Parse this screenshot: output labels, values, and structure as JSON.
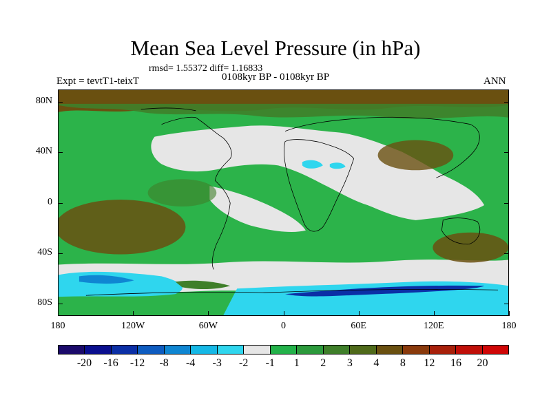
{
  "title": "Mean Sea Level Pressure (in hPa)",
  "stats": "rmsd= 1.55372 diff= 1.16833",
  "experiment": "Expt = tevtT1-teixT",
  "period": "0108kyr BP - 0108kyr BP",
  "season": "ANN",
  "map": {
    "lon_range": [
      -180,
      180
    ],
    "lat_range": [
      -90,
      90
    ],
    "x_ticks": [
      {
        "lon": -180,
        "label": "180"
      },
      {
        "lon": -120,
        "label": "120W"
      },
      {
        "lon": -60,
        "label": "60W"
      },
      {
        "lon": 0,
        "label": "0"
      },
      {
        "lon": 60,
        "label": "60E"
      },
      {
        "lon": 120,
        "label": "120E"
      },
      {
        "lon": 180,
        "label": "180"
      }
    ],
    "y_ticks": [
      {
        "lat": 80,
        "label": "80N"
      },
      {
        "lat": 40,
        "label": "40N"
      },
      {
        "lat": 0,
        "label": "0"
      },
      {
        "lat": -40,
        "label": "40S"
      },
      {
        "lat": -80,
        "label": "80S"
      }
    ]
  },
  "colorbar": {
    "colors": [
      "#1b0a6b",
      "#0a0f8f",
      "#0b2fa6",
      "#0e5cc0",
      "#0f86d2",
      "#15b8e6",
      "#2fd6ee",
      "#e6e6e6",
      "#23b24a",
      "#2c9a3c",
      "#3f7f2a",
      "#4f6a1a",
      "#6a5010",
      "#8a3a0c",
      "#a8200a",
      "#c00f08",
      "#d00606"
    ],
    "labels": [
      "-20",
      "-16",
      "-12",
      "-8",
      "-4",
      "-3",
      "-2",
      "-1",
      "1",
      "2",
      "3",
      "4",
      "8",
      "12",
      "16",
      "20"
    ]
  },
  "legend_colors": {
    "background_green": "#2cb34a",
    "near_zero_gray": "#e6e6e6",
    "brown": "#6a5010",
    "dark_green": "#3f7f2a",
    "cyan": "#2fd6ee",
    "blue": "#0f86d2"
  }
}
